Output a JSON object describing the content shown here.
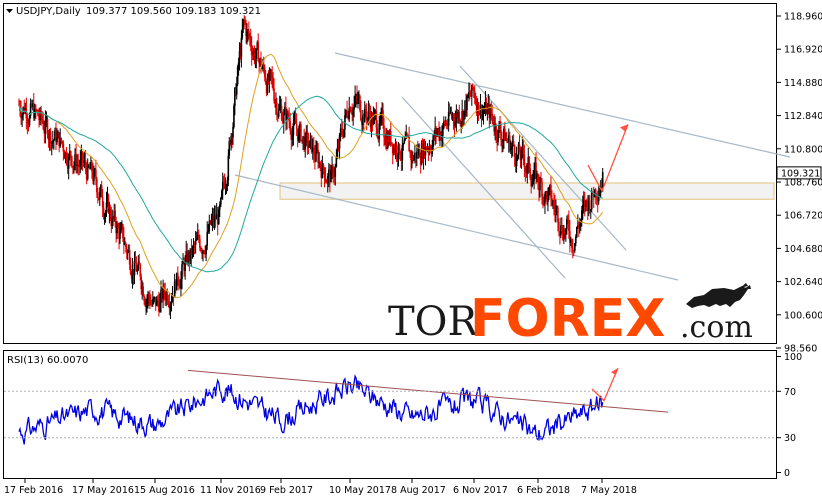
{
  "header": {
    "symbol": "USDJPY,Daily",
    "ohlc": "109.377 109.560 109.183 109.321"
  },
  "rsi_header": "RSI(13) 60.0070",
  "price_marker": "109.321",
  "logo": {
    "part1": "TOR",
    "part2": "FOREX",
    "part3": ".com"
  },
  "colors": {
    "bull_candle": "#000000",
    "bear_candle": "#e00000",
    "ma_fast": "#e0a020",
    "ma_slow": "#20a8a0",
    "channel": "#a8b8c8",
    "zone_fill": "#f2f2f2",
    "zone_border": "#e3c27a",
    "arrow": "#ff5040",
    "rsi": "#0000e0",
    "rsi_trend": "#a05050"
  },
  "chart_data": [
    {
      "type": "candlestick",
      "title": "USDJPY,Daily",
      "ylim": [
        98.56,
        119.92
      ],
      "y_ticks": [
        "118.960",
        "116.920",
        "114.880",
        "112.840",
        "110.800",
        "108.760",
        "106.720",
        "104.680",
        "102.640",
        "100.600",
        "98.560"
      ],
      "x_ticks": [
        "17 Feb 2016",
        "17 May 2016",
        "15 Aug 2016",
        "11 Nov 2016",
        "9 Feb 2017",
        "10 May 2017",
        "8 Aug 2017",
        "6 Nov 2017",
        "6 Feb 2018",
        "7 May 2018"
      ],
      "last_price": 109.321,
      "series": [
        {
          "x": [
            "17 Feb 2016",
            "17 May 2016",
            "15 Aug 2016",
            "11 Nov 2016",
            "9 Feb 2017",
            "10 May 2017",
            "8 Aug 2017",
            "6 Nov 2017",
            "6 Feb 2018",
            "7 May 2018"
          ],
          "values": [
            113.5,
            109.0,
            101.0,
            106.8,
            113.2,
            114.0,
            110.2,
            114.1,
            108.8,
            109.3
          ]
        }
      ],
      "key_points": [
        {
          "date": "17 Feb 2016",
          "price": 113.5
        },
        {
          "date": "17 May 2016",
          "price": 109.0
        },
        {
          "date": "15 Aug 2016",
          "price": 101.0
        },
        {
          "date": "11 Nov 2016",
          "price": 106.8
        },
        {
          "date": "15 Dec 2016",
          "price": 118.3
        },
        {
          "date": "9 Feb 2017",
          "price": 113.2
        },
        {
          "date": "17 Apr 2017",
          "price": 108.9
        },
        {
          "date": "10 May 2017",
          "price": 114.0
        },
        {
          "date": "8 Aug 2017",
          "price": 110.2
        },
        {
          "date": "6 Nov 2017",
          "price": 114.1
        },
        {
          "date": "6 Feb 2018",
          "price": 108.8
        },
        {
          "date": "26 Mar 2018",
          "price": 105.3
        },
        {
          "date": "7 May 2018",
          "price": 109.3
        }
      ],
      "support_zone": [
        107.7,
        108.7
      ],
      "projection": {
        "down_to": 108.2,
        "up_to": 112.3
      }
    },
    {
      "type": "line",
      "title": "RSI(13) 60.0070",
      "ylim": [
        0,
        100
      ],
      "y_ticks": [
        "100",
        "70",
        "30",
        "0"
      ],
      "last_value": 60.007,
      "series": [
        {
          "x": [
            "17 Feb 2016",
            "17 May 2016",
            "15 Aug 2016",
            "11 Nov 2016",
            "9 Feb 2017",
            "10 May 2017",
            "8 Aug 2017",
            "6 Nov 2017",
            "6 Feb 2018",
            "7 May 2018"
          ],
          "values": [
            36,
            55,
            41,
            74,
            45,
            75,
            48,
            62,
            33,
            60
          ]
        }
      ]
    }
  ]
}
